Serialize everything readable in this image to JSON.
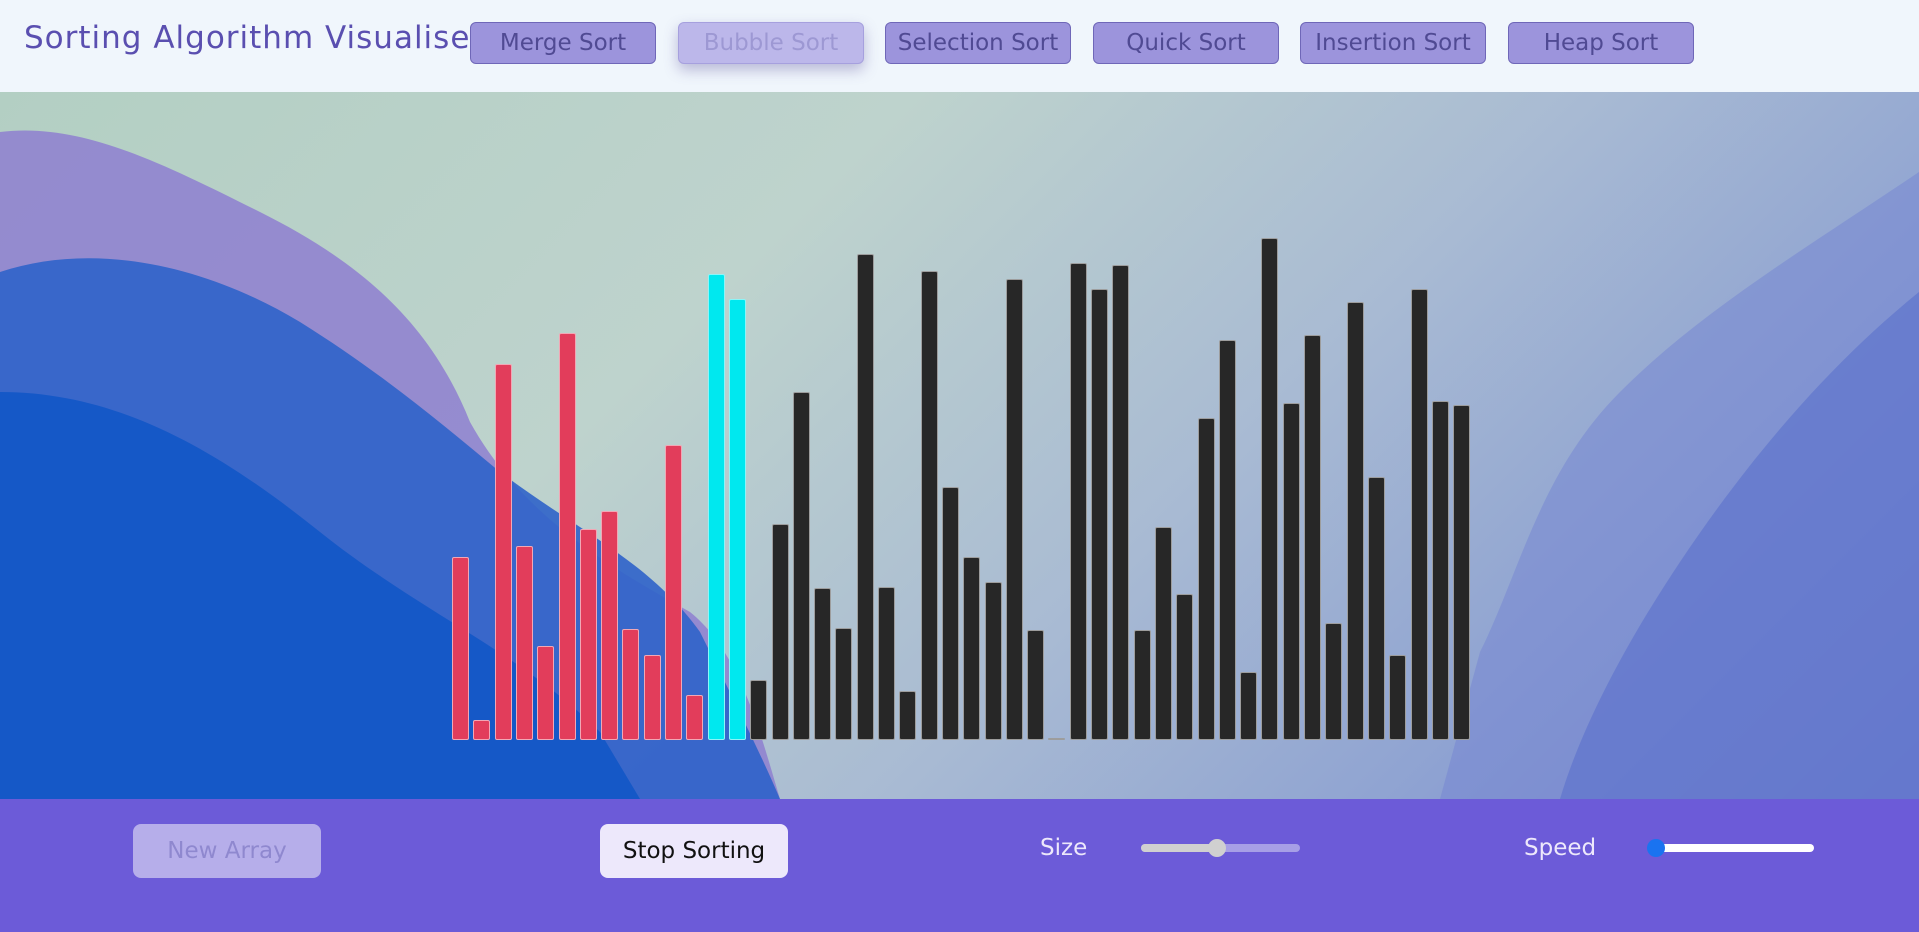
{
  "header": {
    "title": "Sorting Algorithm Visualiser",
    "buttons": [
      {
        "label": "Merge Sort",
        "disabled": false
      },
      {
        "label": "Bubble Sort",
        "disabled": true
      },
      {
        "label": "Selection Sort",
        "disabled": false
      },
      {
        "label": "Quick Sort",
        "disabled": false
      },
      {
        "label": "Insertion Sort",
        "disabled": false
      },
      {
        "label": "Heap Sort",
        "disabled": false
      }
    ]
  },
  "colors": {
    "sorted_bar": "#e23d5b",
    "compared_bar": "#00e8ef",
    "unsorted_bar": "#272727",
    "footer": "#6c5bd8",
    "slider_thumb_size": "#d0d0d0",
    "slider_fill_speed": "#ffffff",
    "slider_thumb_speed": "#1a73f0"
  },
  "array": {
    "values": [
      183,
      20,
      376,
      194,
      94,
      407,
      211,
      229,
      111,
      85,
      295,
      45,
      466,
      441,
      60,
      216,
      348,
      152,
      112,
      486,
      153,
      49,
      469,
      253,
      183,
      158,
      461,
      110,
      1,
      477,
      451,
      475,
      110,
      213,
      146,
      322,
      400,
      68,
      502,
      337,
      405,
      117,
      438,
      263,
      85,
      451,
      339,
      335
    ],
    "states": [
      "sorted",
      "sorted",
      "sorted",
      "sorted",
      "sorted",
      "sorted",
      "sorted",
      "sorted",
      "sorted",
      "sorted",
      "sorted",
      "sorted",
      "compared",
      "compared",
      "unsorted",
      "unsorted",
      "unsorted",
      "unsorted",
      "unsorted",
      "unsorted",
      "unsorted",
      "unsorted",
      "unsorted",
      "unsorted",
      "unsorted",
      "unsorted",
      "unsorted",
      "unsorted",
      "unsorted",
      "unsorted",
      "unsorted",
      "unsorted",
      "unsorted",
      "unsorted",
      "unsorted",
      "unsorted",
      "unsorted",
      "unsorted",
      "unsorted",
      "unsorted",
      "unsorted",
      "unsorted",
      "unsorted",
      "unsorted",
      "unsorted",
      "unsorted",
      "unsorted",
      "unsorted"
    ]
  },
  "controls": {
    "new_array_label": "New Array",
    "new_array_disabled": true,
    "stop_sorting_label": "Stop Sorting",
    "size_label": "Size",
    "size_value_fraction": 0.48,
    "speed_label": "Speed",
    "speed_value_fraction": 0.0
  }
}
